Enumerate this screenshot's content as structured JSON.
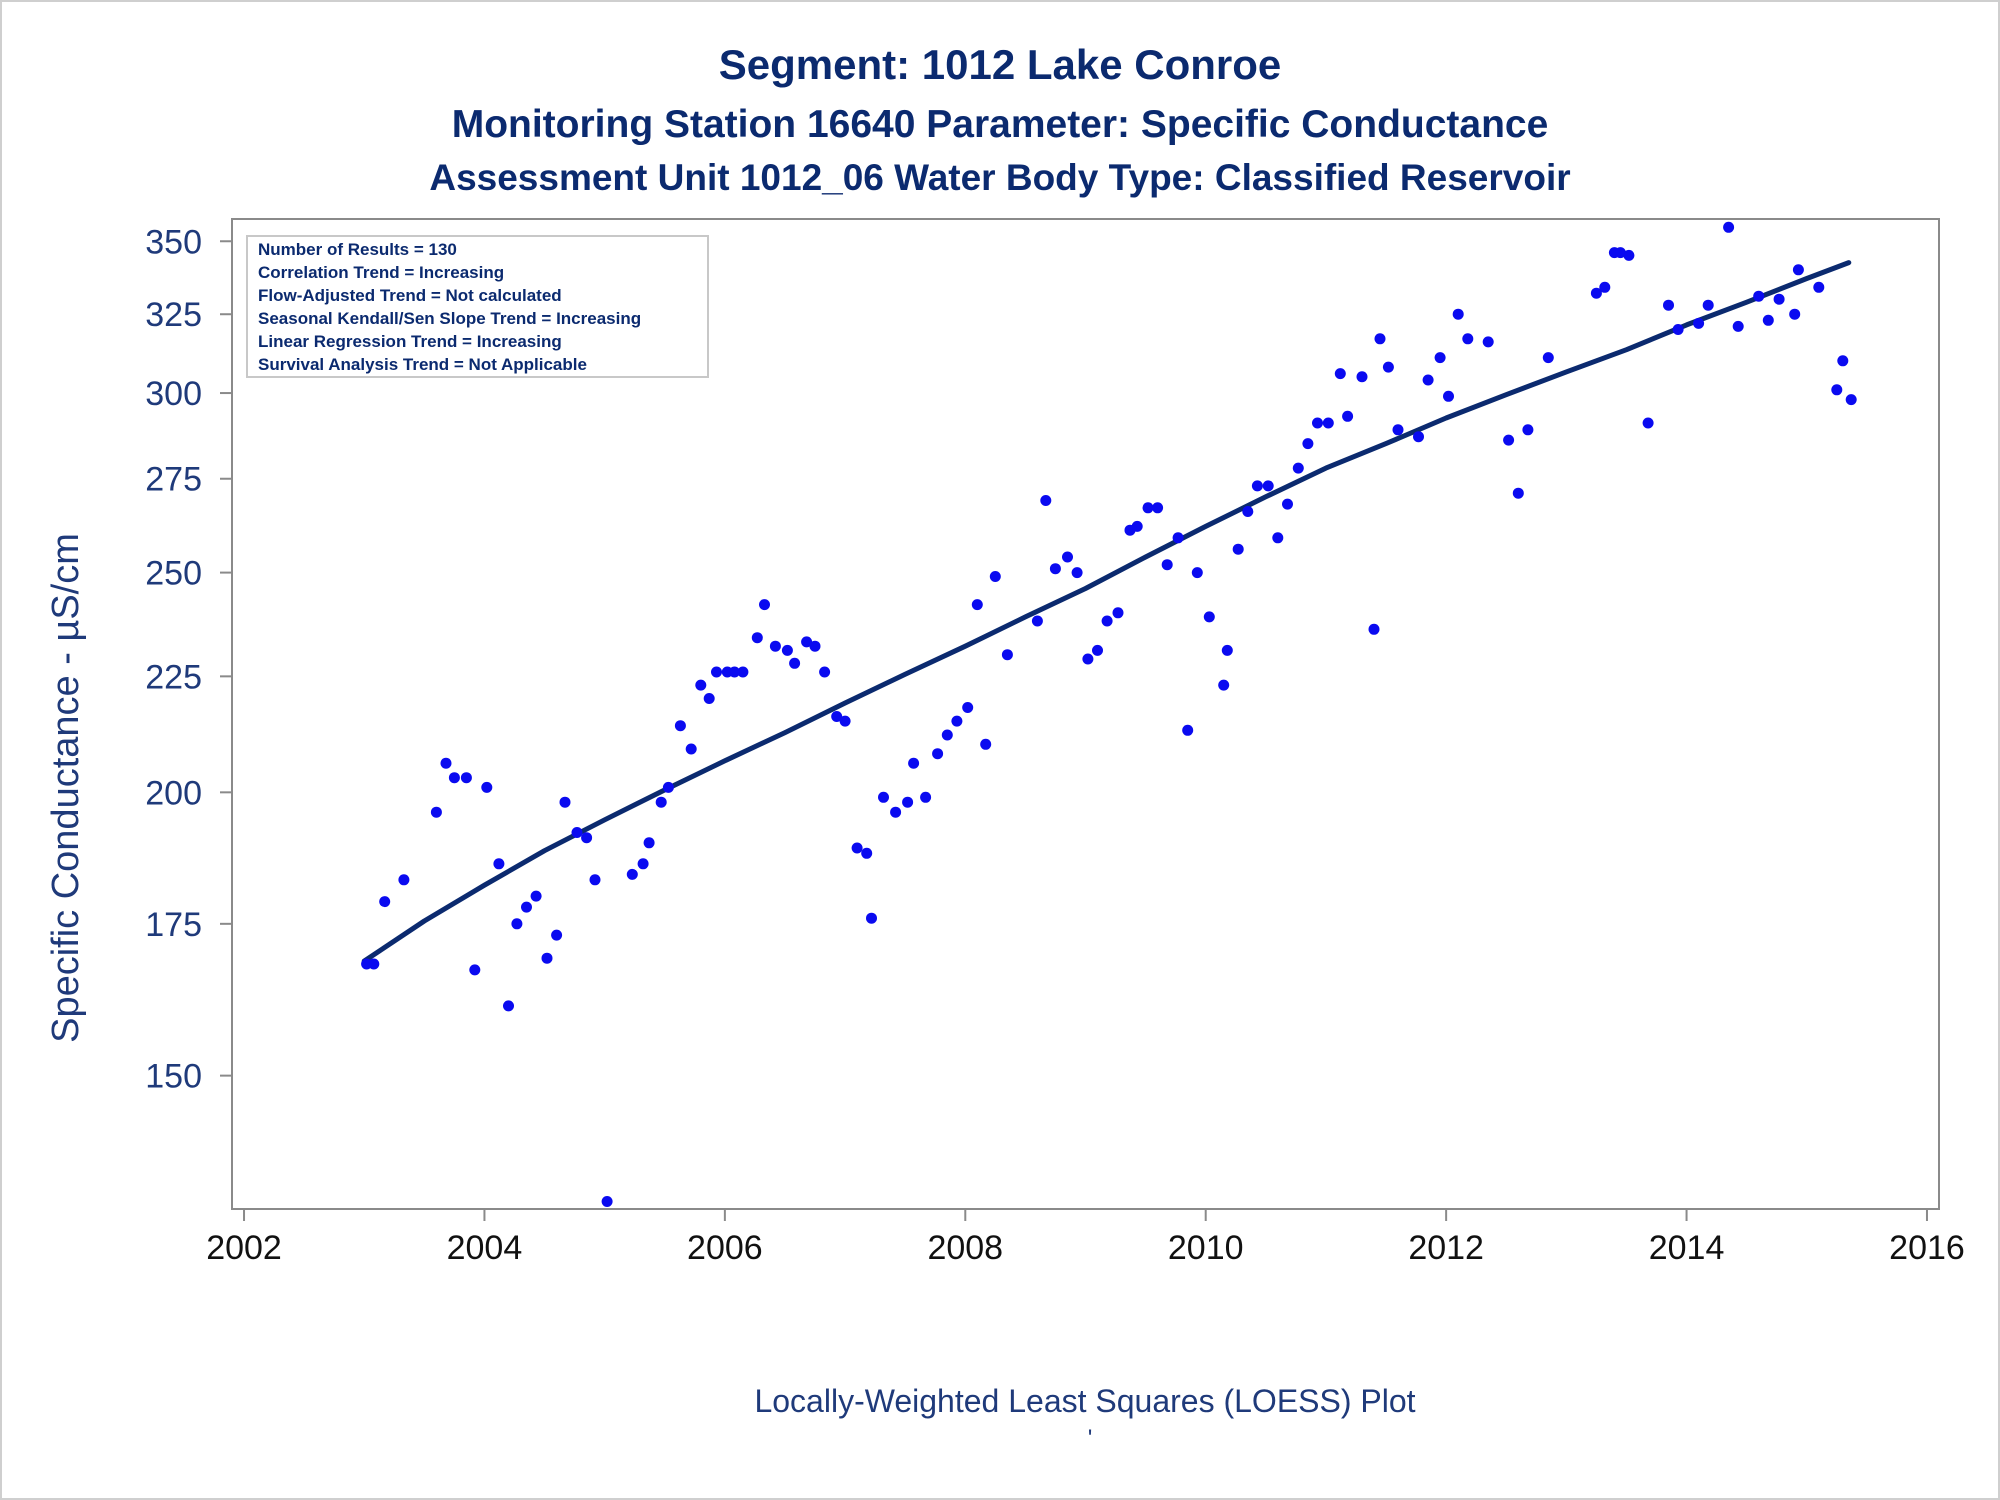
{
  "chart_data": {
    "type": "scatter",
    "title": "Segment: 1012  Lake Conroe",
    "subtitle": "Monitoring Station 16640 Parameter: Specific Conductance",
    "subtitle2": "Assessment Unit 1012_06   Water Body Type: Classified Reservoir",
    "ylabel": "Specific Conductance -  µS/cm",
    "xlabel": "",
    "footnote": "Locally-Weighted Least Squares (LOESS) Plot",
    "footnote_mark": "'",
    "y_scale": "log",
    "xlim": [
      2001.9,
      2016.1
    ],
    "ylim": [
      131,
      358
    ],
    "x_ticks": [
      2002,
      2004,
      2006,
      2008,
      2010,
      2012,
      2014,
      2016
    ],
    "y_ticks": [
      150,
      175,
      200,
      225,
      250,
      275,
      300,
      325,
      350
    ],
    "legend_placement": "top-left",
    "legend_lines": [
      "Number of Results = 130",
      "Correlation Trend = Increasing",
      "Flow-Adjusted Trend = Not calculated",
      "Seasonal Kendall/Sen Slope Trend = Increasing",
      "Linear Regression Trend = Increasing",
      "Survival Analysis Trend = Not Applicable"
    ],
    "colors": {
      "points": "#0a0af0",
      "loess": "#0b2a6f",
      "text": "#0b2a6f",
      "axis": "#8a8a8a"
    },
    "series": [
      {
        "name": "Observations",
        "points": [
          [
            2003.02,
            168
          ],
          [
            2003.08,
            168
          ],
          [
            2003.17,
            179
          ],
          [
            2003.33,
            183
          ],
          [
            2003.6,
            196
          ],
          [
            2003.68,
            206
          ],
          [
            2003.75,
            203
          ],
          [
            2003.85,
            203
          ],
          [
            2003.92,
            167
          ],
          [
            2004.02,
            201
          ],
          [
            2004.12,
            186
          ],
          [
            2004.2,
            161
          ],
          [
            2004.27,
            175
          ],
          [
            2004.35,
            178
          ],
          [
            2004.43,
            180
          ],
          [
            2004.52,
            169
          ],
          [
            2004.6,
            173
          ],
          [
            2004.67,
            198
          ],
          [
            2004.77,
            192
          ],
          [
            2004.85,
            191
          ],
          [
            2004.92,
            183
          ],
          [
            2005.02,
            132
          ],
          [
            2005.23,
            184
          ],
          [
            2005.32,
            186
          ],
          [
            2005.37,
            190
          ],
          [
            2005.47,
            198
          ],
          [
            2005.53,
            201
          ],
          [
            2005.63,
            214
          ],
          [
            2005.72,
            209
          ],
          [
            2005.8,
            223
          ],
          [
            2005.87,
            220
          ],
          [
            2005.93,
            226
          ],
          [
            2006.02,
            226
          ],
          [
            2006.08,
            226
          ],
          [
            2006.15,
            226
          ],
          [
            2006.27,
            234
          ],
          [
            2006.33,
            242
          ],
          [
            2006.42,
            232
          ],
          [
            2006.52,
            231
          ],
          [
            2006.58,
            228
          ],
          [
            2006.68,
            233
          ],
          [
            2006.75,
            232
          ],
          [
            2006.83,
            226
          ],
          [
            2006.93,
            216
          ],
          [
            2007.0,
            215
          ],
          [
            2007.1,
            189
          ],
          [
            2007.18,
            188
          ],
          [
            2007.22,
            176
          ],
          [
            2007.32,
            199
          ],
          [
            2007.42,
            196
          ],
          [
            2007.52,
            198
          ],
          [
            2007.57,
            206
          ],
          [
            2007.67,
            199
          ],
          [
            2007.77,
            208
          ],
          [
            2007.85,
            212
          ],
          [
            2007.93,
            215
          ],
          [
            2008.02,
            218
          ],
          [
            2008.1,
            242
          ],
          [
            2008.17,
            210
          ],
          [
            2008.25,
            249
          ],
          [
            2008.35,
            230
          ],
          [
            2008.6,
            238
          ],
          [
            2008.67,
            269
          ],
          [
            2008.75,
            251
          ],
          [
            2008.85,
            254
          ],
          [
            2008.93,
            250
          ],
          [
            2009.02,
            229
          ],
          [
            2009.1,
            231
          ],
          [
            2009.18,
            238
          ],
          [
            2009.27,
            240
          ],
          [
            2009.37,
            261
          ],
          [
            2009.43,
            262
          ],
          [
            2009.52,
            267
          ],
          [
            2009.6,
            267
          ],
          [
            2009.68,
            252
          ],
          [
            2009.77,
            259
          ],
          [
            2009.85,
            213
          ],
          [
            2009.93,
            250
          ],
          [
            2010.03,
            239
          ],
          [
            2010.15,
            223
          ],
          [
            2010.18,
            231
          ],
          [
            2010.27,
            256
          ],
          [
            2010.35,
            266
          ],
          [
            2010.43,
            273
          ],
          [
            2010.52,
            273
          ],
          [
            2010.6,
            259
          ],
          [
            2010.68,
            268
          ],
          [
            2010.77,
            278
          ],
          [
            2010.85,
            285
          ],
          [
            2010.93,
            291
          ],
          [
            2011.02,
            291
          ],
          [
            2011.12,
            306
          ],
          [
            2011.18,
            293
          ],
          [
            2011.3,
            305
          ],
          [
            2011.4,
            236
          ],
          [
            2011.45,
            317
          ],
          [
            2011.52,
            308
          ],
          [
            2011.6,
            289
          ],
          [
            2011.77,
            287
          ],
          [
            2011.85,
            304
          ],
          [
            2011.95,
            311
          ],
          [
            2012.02,
            299
          ],
          [
            2012.1,
            325
          ],
          [
            2012.18,
            317
          ],
          [
            2012.35,
            316
          ],
          [
            2012.52,
            286
          ],
          [
            2012.6,
            271
          ],
          [
            2012.68,
            289
          ],
          [
            2012.85,
            311
          ],
          [
            2013.25,
            332
          ],
          [
            2013.32,
            334
          ],
          [
            2013.4,
            346
          ],
          [
            2013.45,
            346
          ],
          [
            2013.52,
            345
          ],
          [
            2013.68,
            291
          ],
          [
            2013.85,
            328
          ],
          [
            2013.93,
            320
          ],
          [
            2014.1,
            322
          ],
          [
            2014.18,
            328
          ],
          [
            2014.35,
            355
          ],
          [
            2014.43,
            321
          ],
          [
            2014.6,
            331
          ],
          [
            2014.68,
            323
          ],
          [
            2014.77,
            330
          ],
          [
            2014.9,
            325
          ],
          [
            2014.93,
            340
          ],
          [
            2015.1,
            334
          ],
          [
            2015.25,
            301
          ],
          [
            2015.3,
            310
          ],
          [
            2015.37,
            298
          ]
        ]
      },
      {
        "name": "LOESS",
        "points": [
          [
            2003.0,
            168.5
          ],
          [
            2003.5,
            175.5
          ],
          [
            2004.0,
            182
          ],
          [
            2004.5,
            188.5
          ],
          [
            2005.0,
            194.5
          ],
          [
            2005.5,
            200.5
          ],
          [
            2006.0,
            206.5
          ],
          [
            2006.5,
            212.5
          ],
          [
            2007.0,
            219
          ],
          [
            2007.5,
            225.5
          ],
          [
            2008.0,
            232
          ],
          [
            2008.5,
            239
          ],
          [
            2009.0,
            246
          ],
          [
            2009.5,
            254
          ],
          [
            2010.0,
            262
          ],
          [
            2010.5,
            270
          ],
          [
            2011.0,
            278
          ],
          [
            2011.5,
            285
          ],
          [
            2012.0,
            292.5
          ],
          [
            2012.5,
            299.5
          ],
          [
            2013.0,
            306.5
          ],
          [
            2013.5,
            313.5
          ],
          [
            2014.0,
            321.5
          ],
          [
            2014.5,
            329
          ],
          [
            2015.0,
            337
          ],
          [
            2015.35,
            342.5
          ]
        ]
      }
    ]
  }
}
